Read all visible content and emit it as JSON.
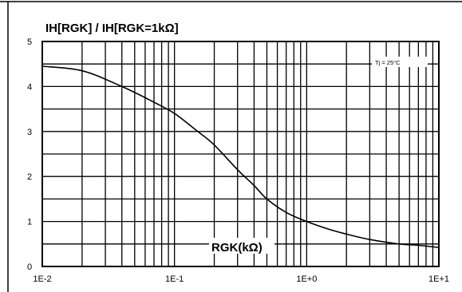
{
  "chart_data": {
    "type": "line",
    "xscale": "log",
    "x_range": [
      "1E-2",
      "1E+1"
    ],
    "y_range": [
      0,
      5
    ],
    "y_ticks": [
      "0",
      "1",
      "2",
      "3",
      "4",
      "5"
    ],
    "x_ticks": [
      "1E-2",
      "1E-1",
      "1E+0",
      "1E+1"
    ],
    "grid": true,
    "ylabel": "IH[RGK] / IH[RGK=1kΩ]",
    "xlabel": "RGK(kΩ)",
    "annotation": "Tj = 25°C",
    "series": [
      {
        "x": [
          0.01,
          0.02,
          0.04,
          0.07,
          0.1,
          0.15,
          0.2,
          0.3,
          0.4,
          0.5,
          0.7,
          1.0,
          1.5,
          2.0,
          3.0,
          5.0,
          7.0,
          10.0
        ],
        "y": [
          4.45,
          4.35,
          4.0,
          3.65,
          3.4,
          3.0,
          2.7,
          2.15,
          1.8,
          1.5,
          1.2,
          1.0,
          0.82,
          0.72,
          0.6,
          0.5,
          0.47,
          0.42
        ]
      }
    ]
  }
}
